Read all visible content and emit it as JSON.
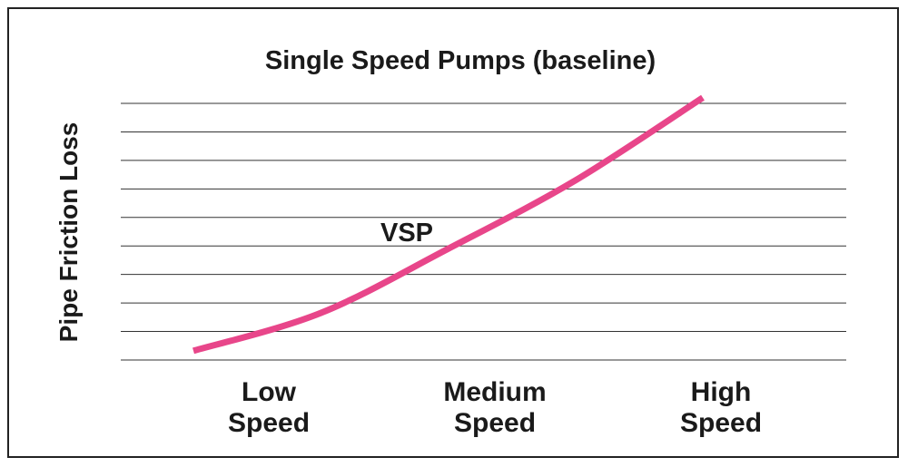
{
  "chart_data": {
    "type": "line",
    "title": "Single Speed Pumps (baseline)",
    "xlabel": "",
    "ylabel": "Pipe Friction Loss",
    "categories": [
      [
        "Low",
        "Speed"
      ],
      [
        "Medium",
        "Speed"
      ],
      [
        "High",
        "Speed"
      ]
    ],
    "series": [
      {
        "name": "VSP",
        "color": "#e8468a",
        "x": [
          0,
          0.25,
          0.5,
          0.75,
          1.0
        ],
        "y": [
          0.32,
          1.65,
          3.9,
          6.3,
          9.2
        ]
      }
    ],
    "xlim": [
      0,
      1
    ],
    "ylim": [
      0,
      9
    ],
    "grid_lines": 10,
    "grid": true
  }
}
